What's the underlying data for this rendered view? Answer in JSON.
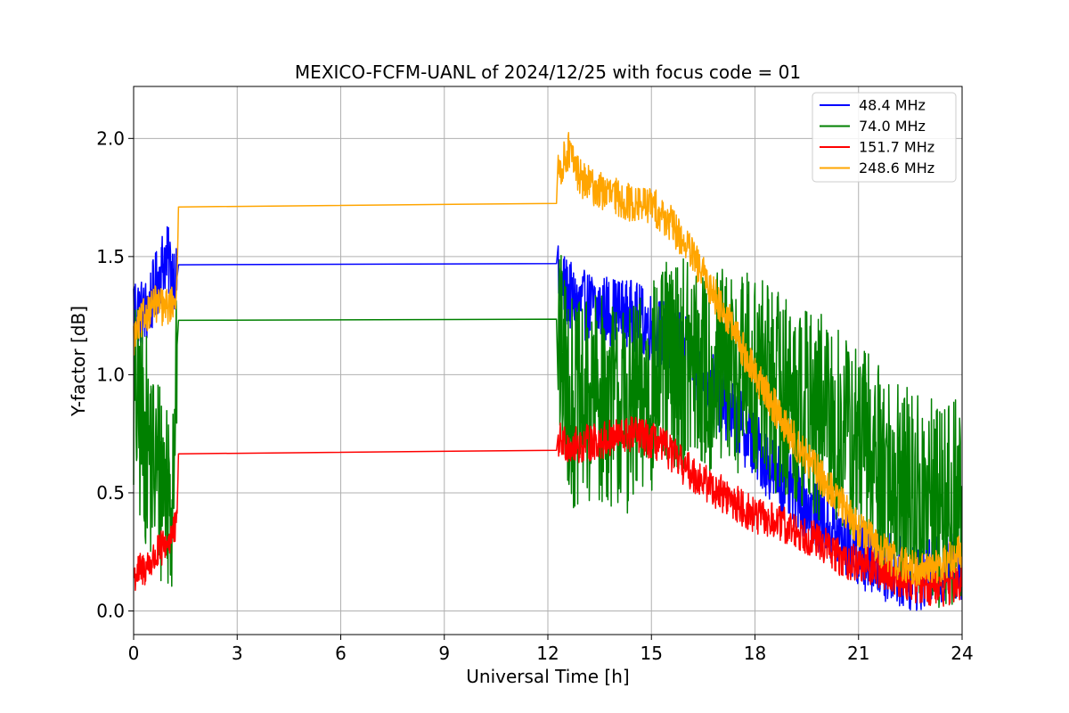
{
  "chart_data": {
    "type": "line",
    "title": "MEXICO-FCFM-UANL of 2024/12/25 with focus code = 01",
    "xlabel": "Universal Time [h]",
    "ylabel": "Y-factor [dB]",
    "xlim": [
      0,
      24
    ],
    "ylim": [
      -0.1,
      2.22
    ],
    "xticks": [
      0,
      3,
      6,
      9,
      12,
      15,
      18,
      21,
      24
    ],
    "xtick_labels": [
      "0",
      "3",
      "6",
      "9",
      "12",
      "15",
      "18",
      "21",
      "24"
    ],
    "yticks": [
      0.0,
      0.5,
      1.0,
      1.5,
      2.0
    ],
    "ytick_labels": [
      "0.0",
      "0.5",
      "1.0",
      "1.5",
      "2.0"
    ],
    "grid": true,
    "legend_position": "top-right",
    "series": [
      {
        "name": " 48.4 MHz",
        "color": "#0000ff",
        "noise": 0.15,
        "x": [
          0.0,
          0.3,
          0.6,
          0.9,
          1.1,
          1.25,
          1.3,
          12.25,
          12.3,
          12.8,
          13.5,
          14.5,
          15.0,
          15.5,
          16.0,
          16.5,
          17.0,
          17.5,
          18.0,
          18.5,
          19.0,
          19.5,
          20.0,
          20.5,
          21.0,
          21.5,
          22.0,
          22.5,
          23.0,
          23.5,
          24.0
        ],
        "y": [
          1.3,
          1.25,
          1.35,
          1.5,
          1.45,
          1.4,
          1.465,
          1.47,
          1.4,
          1.3,
          1.28,
          1.25,
          1.2,
          1.15,
          1.1,
          1.0,
          0.9,
          0.8,
          0.7,
          0.6,
          0.52,
          0.45,
          0.38,
          0.3,
          0.25,
          0.2,
          0.18,
          0.15,
          0.15,
          0.18,
          0.2
        ]
      },
      {
        "name": " 74.0 MHz",
        "color": "#008000",
        "noise": 0.45,
        "x": [
          0.0,
          0.3,
          0.6,
          0.9,
          1.1,
          1.25,
          1.3,
          12.25,
          12.3,
          12.8,
          13.5,
          14.5,
          15.0,
          15.5,
          16.0,
          16.5,
          17.0,
          17.5,
          18.0,
          18.5,
          19.0,
          19.5,
          20.0,
          20.5,
          21.0,
          21.5,
          22.0,
          22.5,
          23.0,
          23.5,
          24.0
        ],
        "y": [
          0.9,
          0.75,
          0.6,
          0.55,
          0.5,
          1.1,
          1.23,
          1.235,
          1.1,
          0.85,
          0.9,
          0.85,
          0.95,
          1.05,
          1.05,
          1.0,
          1.0,
          1.02,
          1.0,
          0.95,
          0.9,
          0.85,
          0.8,
          0.75,
          0.7,
          0.65,
          0.55,
          0.5,
          0.45,
          0.45,
          0.45
        ]
      },
      {
        "name": " 151.7 MHz",
        "color": "#ff0000",
        "noise": 0.08,
        "x": [
          0.0,
          0.3,
          0.6,
          0.9,
          1.1,
          1.25,
          1.3,
          12.25,
          12.3,
          12.8,
          13.5,
          14.5,
          15.0,
          15.5,
          16.0,
          16.5,
          17.0,
          17.5,
          18.0,
          18.5,
          19.0,
          19.5,
          20.0,
          20.5,
          21.0,
          21.5,
          22.0,
          22.5,
          23.0,
          23.5,
          24.0
        ],
        "y": [
          0.15,
          0.18,
          0.22,
          0.28,
          0.32,
          0.35,
          0.665,
          0.68,
          0.72,
          0.7,
          0.72,
          0.75,
          0.72,
          0.68,
          0.6,
          0.55,
          0.5,
          0.45,
          0.4,
          0.38,
          0.35,
          0.32,
          0.28,
          0.22,
          0.2,
          0.18,
          0.15,
          0.12,
          0.1,
          0.1,
          0.12
        ]
      },
      {
        "name": " 248.6 MHz",
        "color": "#ffa500",
        "noise": 0.08,
        "x": [
          0.0,
          0.3,
          0.6,
          0.9,
          1.1,
          1.25,
          1.3,
          12.25,
          12.3,
          12.6,
          12.8,
          13.0,
          13.5,
          14.0,
          14.5,
          15.0,
          15.5,
          16.0,
          16.5,
          17.0,
          17.5,
          18.0,
          18.5,
          19.0,
          19.5,
          20.0,
          20.5,
          21.0,
          21.5,
          22.0,
          22.5,
          23.0,
          23.5,
          24.0
        ],
        "y": [
          1.15,
          1.25,
          1.3,
          1.28,
          1.3,
          1.35,
          1.71,
          1.725,
          1.85,
          1.95,
          1.88,
          1.82,
          1.78,
          1.75,
          1.72,
          1.72,
          1.65,
          1.55,
          1.42,
          1.3,
          1.15,
          1.0,
          0.88,
          0.75,
          0.65,
          0.55,
          0.45,
          0.35,
          0.28,
          0.22,
          0.18,
          0.18,
          0.2,
          0.25
        ]
      }
    ]
  }
}
